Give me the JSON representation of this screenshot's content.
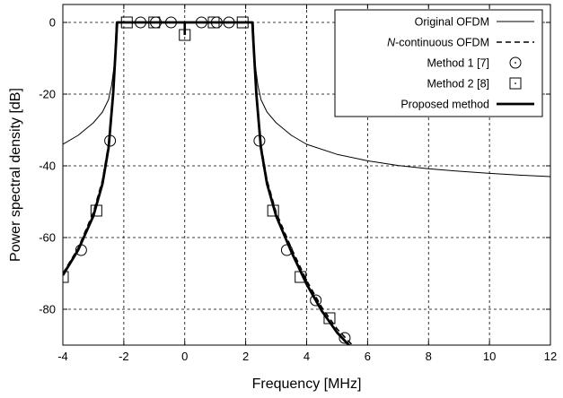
{
  "chart_data": {
    "type": "line",
    "xlabel": "Frequency [MHz]",
    "ylabel": "Power spectral density [dB]",
    "xlim": [
      -4,
      12
    ],
    "ylim": [
      -90,
      5
    ],
    "xticks": [
      "-4",
      "-2",
      "0",
      "2",
      "4",
      "6",
      "8",
      "10",
      "12"
    ],
    "yticks": [
      "0",
      "-20",
      "-40",
      "-60",
      "-80"
    ],
    "grid": true,
    "legend_position": "top-right",
    "series": [
      {
        "name": "Original OFDM",
        "style": "thin-solid",
        "x": [
          -4,
          -3.5,
          -3,
          -2.7,
          -2.5,
          -2.4,
          -2.3,
          -2.25,
          2.25,
          2.3,
          2.4,
          2.5,
          2.7,
          3,
          3.5,
          4,
          5,
          6,
          7,
          8,
          9,
          10,
          11,
          12
        ],
        "y": [
          -34,
          -31.5,
          -28,
          -25,
          -21.5,
          -17.5,
          -11,
          0,
          0,
          -11,
          -17.5,
          -21.5,
          -25,
          -28,
          -31.5,
          -34,
          -36.8,
          -38.6,
          -39.9,
          -40.8,
          -41.5,
          -42.1,
          -42.6,
          -43.0
        ]
      },
      {
        "name": "N-continuous OFDM",
        "legend_name_italic": "N",
        "legend_name_rest": "-continuous OFDM",
        "style": "dashed",
        "x": [
          -4,
          -3.5,
          -3,
          -2.7,
          -2.5,
          -2.35,
          -2.25,
          -2.22,
          2.22,
          2.25,
          2.35,
          2.5,
          2.7,
          3,
          3.5,
          4,
          4.5,
          5,
          5.5,
          5.8
        ],
        "y": [
          -70,
          -63,
          -53,
          -44,
          -34,
          -20,
          -5,
          0,
          0,
          -5,
          -20,
          -34,
          -44,
          -53,
          -63,
          -72,
          -79.5,
          -85.5,
          -90,
          -93
        ]
      },
      {
        "name": "Method 1 [7]",
        "marker": "circle",
        "x": [
          -3.4,
          -2.45,
          -1.45,
          -0.95,
          -0.45,
          0.55,
          1.05,
          1.45,
          2.45,
          3.35,
          4.3,
          5.25
        ],
        "y": [
          -63.5,
          -33,
          0,
          0,
          0,
          0,
          0,
          0,
          -33,
          -63.5,
          -77.5,
          -88
        ]
      },
      {
        "name": "Method 2 [8]",
        "marker": "square",
        "x": [
          -4,
          -2.9,
          -1.9,
          -1.0,
          0,
          0.95,
          1.9,
          2.9,
          3.8,
          4.75
        ],
        "y": [
          -71,
          -52.5,
          0,
          0,
          -3.5,
          0,
          0,
          -52.5,
          -71,
          -82.5
        ]
      },
      {
        "name": "Proposed method",
        "style": "thick-solid",
        "x": [
          -4,
          -3.5,
          -3,
          -2.7,
          -2.5,
          -2.35,
          -2.25,
          -2.22,
          2.22,
          2.25,
          2.35,
          2.5,
          2.7,
          3,
          3.5,
          4,
          4.5,
          5,
          5.5,
          5.8
        ],
        "y": [
          -70.5,
          -63.5,
          -54,
          -45,
          -35,
          -20,
          -5,
          0,
          0,
          -5,
          -20,
          -35,
          -45,
          -54,
          -64,
          -73,
          -80.5,
          -86.5,
          -91,
          -94
        ]
      }
    ],
    "center_notch": {
      "x": 0,
      "y_bottom": -3.5
    }
  }
}
